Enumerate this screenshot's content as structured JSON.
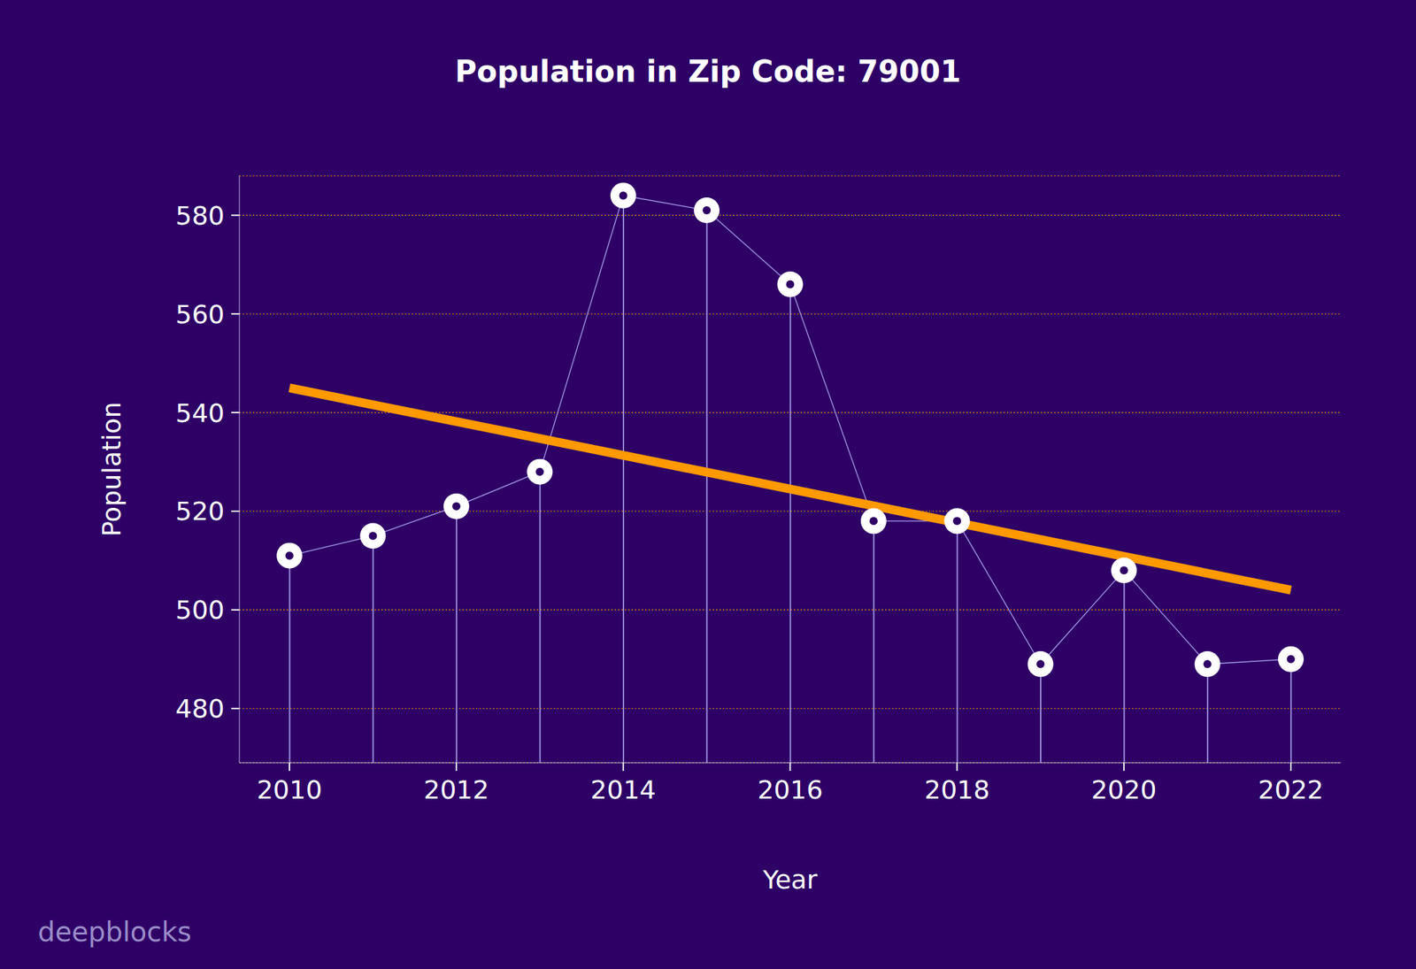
{
  "chart_data": {
    "type": "line",
    "title": "Population in Zip Code: 79001",
    "x_label": "Year",
    "y_label": "Population",
    "annotation": "deepblocks",
    "x": [
      2010,
      2011,
      2012,
      2013,
      2014,
      2015,
      2016,
      2017,
      2018,
      2019,
      2020,
      2021,
      2022
    ],
    "series": [
      {
        "values": [
          511,
          515,
          521,
          528,
          584,
          581,
          566,
          518,
          518,
          489,
          508,
          489,
          490
        ],
        "color": "#ffffff",
        "type": "line",
        "marker": "o",
        "line_style": "solid"
      },
      {
        "x": [
          2010,
          2022
        ],
        "values": [
          545,
          504
        ],
        "color": "#ff9900",
        "type": "line",
        "line_style": "solid"
      }
    ],
    "xlim": [
      2009.4,
      2022.6
    ],
    "xticks": [
      2010,
      2012,
      2014,
      2016,
      2018,
      2020,
      2022
    ],
    "ylim": [
      469,
      588
    ],
    "yticks": [
      480,
      500,
      520,
      540,
      560,
      580
    ],
    "grid": true
  }
}
